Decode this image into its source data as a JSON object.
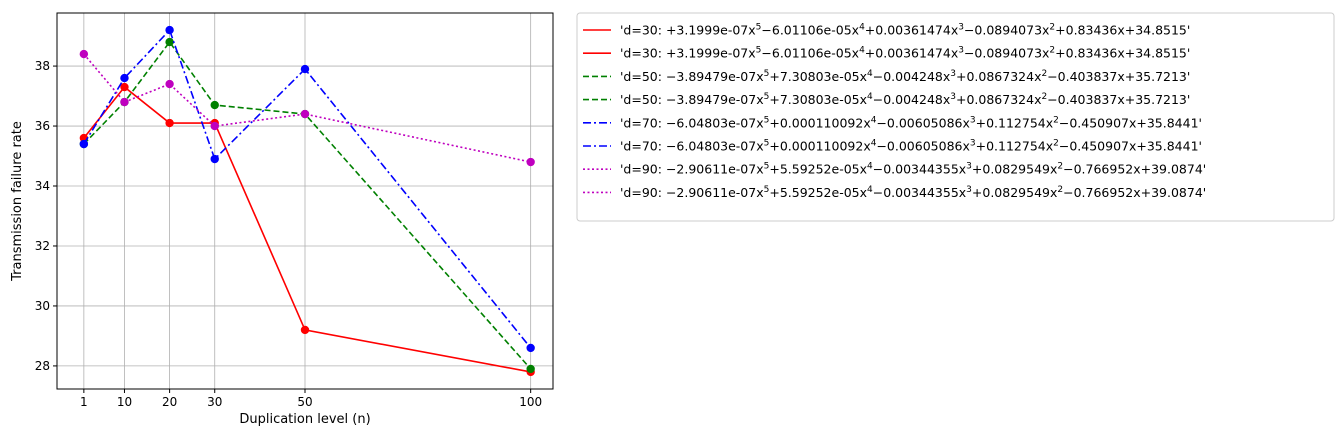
{
  "chart_data": {
    "type": "line",
    "xlabel": "Duplication level (n)",
    "ylabel": "Transmission failure rate",
    "x": [
      1,
      10,
      20,
      30,
      50,
      100
    ],
    "x_ticks": [
      "1",
      "10",
      "20",
      "30",
      "50",
      "100"
    ],
    "y_ticks": [
      "28",
      "30",
      "32",
      "34",
      "36",
      "38"
    ],
    "xlim": [
      -4.95,
      104.95
    ],
    "ylim": [
      27.23,
      39.77
    ],
    "grid": true,
    "legend_position": "outside-right",
    "series": [
      {
        "color": "#ff0000",
        "linestyle": "solid",
        "marker": "circle",
        "values": [
          35.6,
          37.3,
          36.1,
          36.1,
          29.2,
          27.8
        ]
      },
      {
        "color": "#008000",
        "linestyle": "dashed",
        "marker": "circle",
        "values": [
          35.4,
          36.8,
          38.8,
          36.7,
          36.4,
          27.9
        ]
      },
      {
        "color": "#0000ff",
        "linestyle": "dashdot",
        "marker": "circle",
        "values": [
          35.4,
          37.6,
          39.2,
          34.9,
          37.9,
          28.6
        ]
      },
      {
        "color": "#bf00bf",
        "linestyle": "dotted",
        "marker": "circle",
        "values": [
          38.4,
          36.8,
          37.4,
          36.0,
          36.4,
          34.8
        ]
      }
    ],
    "legend": [
      {
        "series": 0,
        "prefix": "'d=30: ",
        "terms": [
          "+3.1999e-07x",
          "5",
          "−6.01106e-05x",
          "4",
          "+0.00361474x",
          "3",
          "−0.0894073x",
          "2",
          "+0.83436x+34.8515'"
        ]
      },
      {
        "series": 0,
        "prefix": "'d=30: ",
        "terms": [
          "+3.1999e-07x",
          "5",
          "−6.01106e-05x",
          "4",
          "+0.00361474x",
          "3",
          "−0.0894073x",
          "2",
          "+0.83436x+34.8515'"
        ]
      },
      {
        "series": 1,
        "prefix": "'d=50: ",
        "terms": [
          "−3.89479e-07x",
          "5",
          "+7.30803e-05x",
          "4",
          "−0.004248x",
          "3",
          "+0.0867324x",
          "2",
          "−0.403837x+35.7213'"
        ]
      },
      {
        "series": 1,
        "prefix": "'d=50: ",
        "terms": [
          "−3.89479e-07x",
          "5",
          "+7.30803e-05x",
          "4",
          "−0.004248x",
          "3",
          "+0.0867324x",
          "2",
          "−0.403837x+35.7213'"
        ]
      },
      {
        "series": 2,
        "prefix": "'d=70: ",
        "terms": [
          "−6.04803e-07x",
          "5",
          "+0.000110092x",
          "4",
          "−0.00605086x",
          "3",
          "+0.112754x",
          "2",
          "−0.450907x+35.8441'"
        ]
      },
      {
        "series": 2,
        "prefix": "'d=70: ",
        "terms": [
          "−6.04803e-07x",
          "5",
          "+0.000110092x",
          "4",
          "−0.00605086x",
          "3",
          "+0.112754x",
          "2",
          "−0.450907x+35.8441'"
        ]
      },
      {
        "series": 3,
        "prefix": "'d=90: ",
        "terms": [
          "−2.90611e-07x",
          "5",
          "+5.59252e-05x",
          "4",
          "−0.00344355x",
          "3",
          "+0.0829549x",
          "2",
          "−0.766952x+39.0874'"
        ]
      },
      {
        "series": 3,
        "prefix": "'d=90: ",
        "terms": [
          "−2.90611e-07x",
          "5",
          "+5.59252e-05x",
          "4",
          "−0.00344355x",
          "3",
          "+0.0829549x",
          "2",
          "−0.766952x+39.0874'"
        ]
      }
    ]
  }
}
